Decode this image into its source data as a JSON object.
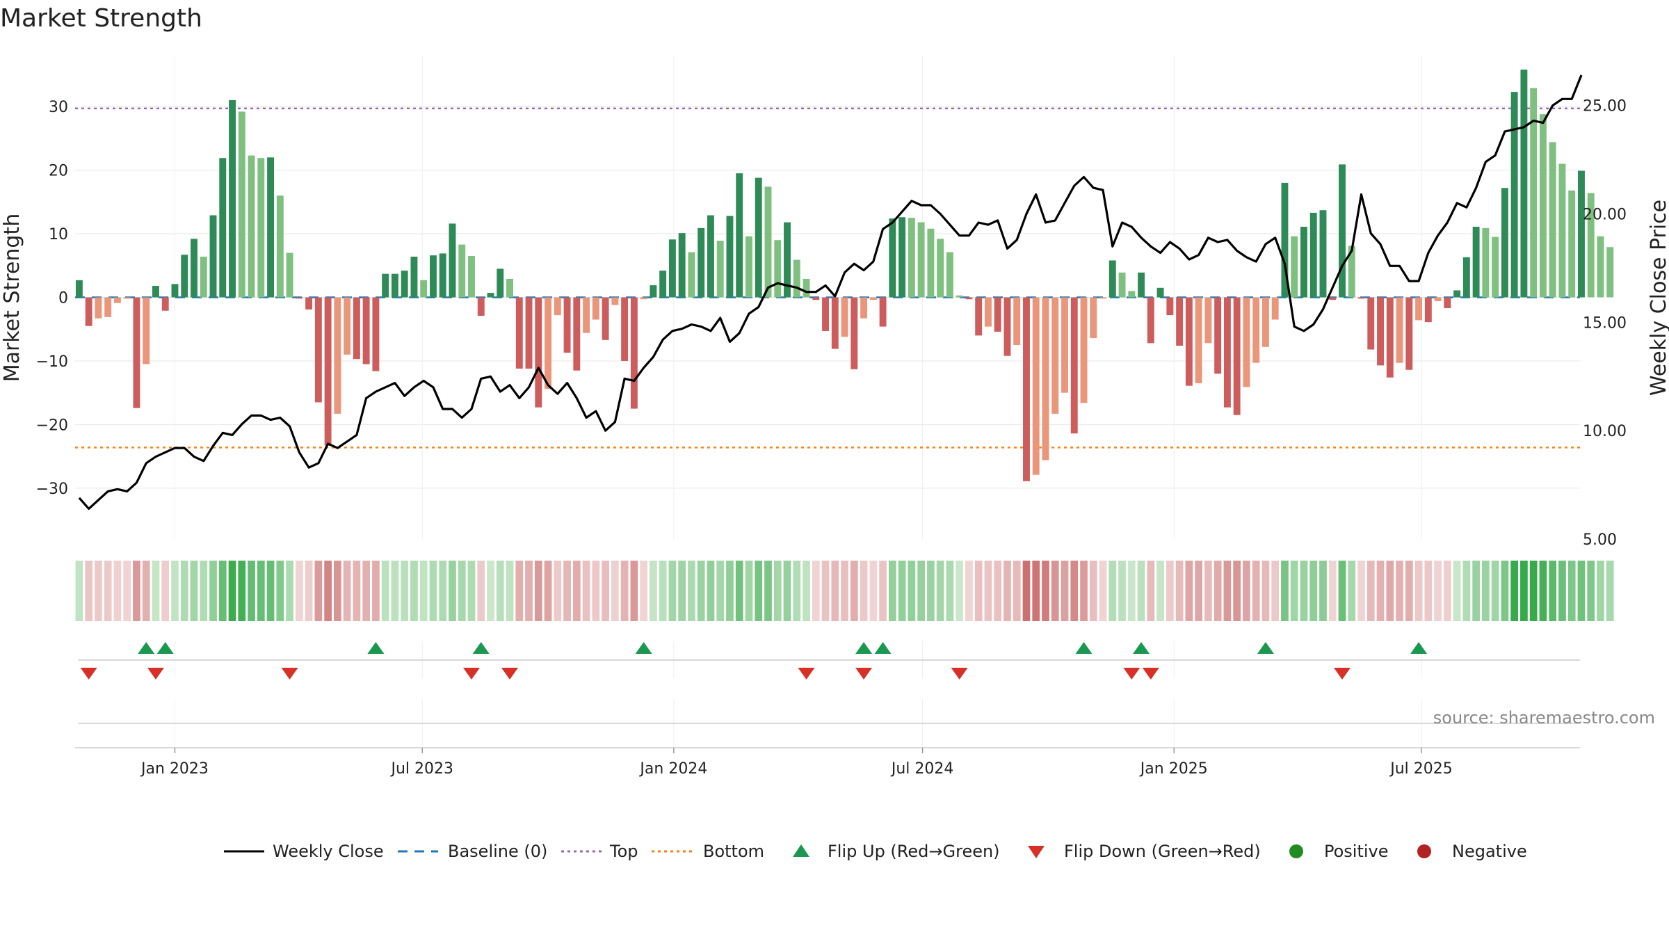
{
  "chart_data": {
    "type": "bar",
    "title": "Market Strength",
    "y_left_label": "Market Strength",
    "y_right_label": "Weekly Close Price",
    "y_left_ticks": [
      "30",
      "20",
      "10",
      "0",
      "−10",
      "−20",
      "−30"
    ],
    "y_left_tick_values": [
      30,
      20,
      10,
      0,
      -10,
      -20,
      -30
    ],
    "y_left_range": [
      -38,
      38
    ],
    "y_right_ticks": [
      "25.00",
      "20.00",
      "15.00",
      "10.00",
      "5.00"
    ],
    "y_right_tick_values": [
      25,
      20,
      15,
      10,
      5
    ],
    "y_right_range": [
      5,
      27.3
    ],
    "x_ticks": [
      "Jan 2023",
      "Jul 2023",
      "Jan 2024",
      "Jul 2024",
      "Jan 2025",
      "Jul 2025"
    ],
    "x_tick_dates": [
      "2023-01-01",
      "2023-07-01",
      "2024-01-01",
      "2024-07-01",
      "2025-01-01",
      "2025-07-01"
    ],
    "x_range": [
      "2022-10-20",
      "2025-10-25"
    ],
    "first_week": "2022-10-23",
    "top_level": 29.7,
    "bottom_level": -23.6,
    "baseline_level": 0,
    "strength": [
      2.7,
      -4.5,
      -3.3,
      -3.1,
      -0.9,
      -0.2,
      -17.4,
      -10.5,
      1.8,
      -2.1,
      2.1,
      6.7,
      9.2,
      6.4,
      12.9,
      21.9,
      31.0,
      29.2,
      22.3,
      21.9,
      22.0,
      16.0,
      7.0,
      -0.2,
      -1.9,
      -16.5,
      -23.3,
      -18.3,
      -9.0,
      -9.7,
      -10.5,
      -11.6,
      3.7,
      3.7,
      4.2,
      6.4,
      2.7,
      6.6,
      6.9,
      11.6,
      8.3,
      6.5,
      -2.9,
      0.7,
      4.5,
      2.9,
      -11.2,
      -11.2,
      -17.3,
      -14.4,
      -2.8,
      -8.7,
      -11.5,
      -5.6,
      -3.5,
      -6.7,
      -1.2,
      -10.0,
      -17.5,
      -0.3,
      1.9,
      4.2,
      9.1,
      10.1,
      7.1,
      10.9,
      12.9,
      8.9,
      12.8,
      19.5,
      9.6,
      18.8,
      17.4,
      9.0,
      11.8,
      5.9,
      2.9,
      -0.4,
      -5.3,
      -8.1,
      -6.2,
      -11.3,
      -3.3,
      -0.4,
      -4.6,
      12.4,
      12.6,
      12.5,
      11.8,
      10.8,
      9.2,
      7.1,
      0.3,
      -0.3,
      -6.0,
      -4.6,
      -5.4,
      -9.2,
      -7.5,
      -28.9,
      -27.9,
      -25.6,
      -18.3,
      -15.0,
      -21.4,
      -16.6,
      -6.4,
      -0.2,
      5.8,
      3.9,
      1.0,
      3.9,
      -7.2,
      1.5,
      -2.8,
      -7.6,
      -13.9,
      -13.5,
      -7.2,
      -12.0,
      -17.3,
      -18.5,
      -14.1,
      -10.3,
      -7.8,
      -3.5,
      18.0,
      9.6,
      11.1,
      13.3,
      13.7,
      -0.4,
      20.9,
      8.1,
      -0.2,
      -8.2,
      -10.7,
      -12.6,
      -10.3,
      -11.4,
      -3.6,
      -3.9,
      -0.6,
      -1.7,
      1.1,
      6.3,
      11.1,
      10.9,
      9.5,
      17.2,
      32.3,
      35.8,
      32.9,
      28.8,
      24.4,
      21.0,
      16.8,
      19.9,
      16.4,
      9.6,
      7.9
    ],
    "price": [
      6.9,
      6.4,
      6.8,
      7.2,
      7.3,
      7.2,
      7.6,
      8.5,
      8.8,
      9.0,
      9.2,
      9.2,
      8.8,
      8.6,
      9.3,
      9.9,
      9.8,
      10.3,
      10.7,
      10.7,
      10.5,
      10.6,
      10.2,
      9.0,
      8.3,
      8.5,
      9.4,
      9.2,
      9.5,
      9.8,
      11.5,
      11.8,
      12.0,
      12.2,
      11.6,
      12.0,
      12.3,
      12.0,
      11.0,
      11.0,
      10.6,
      11.0,
      12.4,
      12.5,
      11.8,
      12.1,
      11.5,
      12.0,
      12.9,
      12.1,
      11.7,
      12.2,
      11.5,
      10.6,
      10.9,
      10.0,
      10.4,
      12.4,
      12.3,
      12.9,
      13.4,
      14.2,
      14.6,
      14.7,
      14.9,
      14.8,
      14.6,
      15.2,
      14.1,
      14.5,
      15.4,
      15.7,
      16.6,
      16.8,
      16.7,
      16.6,
      16.4,
      16.4,
      16.7,
      16.2,
      17.3,
      17.7,
      17.4,
      17.8,
      19.3,
      19.6,
      20.1,
      20.6,
      20.4,
      20.4,
      20.0,
      19.5,
      19.0,
      19.0,
      19.6,
      19.5,
      19.7,
      18.4,
      18.8,
      20.0,
      20.9,
      19.6,
      19.7,
      20.5,
      21.3,
      21.7,
      21.2,
      21.1,
      18.5,
      19.6,
      19.4,
      18.9,
      18.5,
      18.2,
      18.7,
      18.4,
      17.9,
      18.1,
      18.9,
      18.7,
      18.8,
      18.3,
      18.0,
      17.8,
      18.6,
      18.9,
      17.7,
      14.8,
      14.6,
      14.9,
      15.6,
      16.6,
      17.6,
      18.3,
      20.9,
      19.1,
      18.6,
      17.6,
      17.6,
      16.9,
      16.9,
      18.2,
      19.0,
      19.6,
      20.5,
      20.3,
      21.2,
      22.4,
      22.7,
      23.8,
      23.9,
      24.0,
      24.3,
      24.2,
      25.0,
      25.3,
      25.3,
      26.4
    ],
    "flip_up_weeks": [
      7,
      9,
      31,
      42,
      59,
      82,
      84,
      105,
      111,
      124,
      140
    ],
    "flip_down_weeks": [
      1,
      8,
      22,
      41,
      45,
      76,
      82,
      92,
      110,
      112,
      132
    ],
    "legend": [
      "Weekly Close",
      "Baseline (0)",
      "Top",
      "Bottom",
      "Flip Up (Red→Green)",
      "Flip Down (Green→Red)",
      "Positive",
      "Negative"
    ],
    "grid": true,
    "legend_position": "bottom-center"
  },
  "source_text": "source: sharemaestro.com",
  "colors": {
    "green_dark": "#2e8b57",
    "green_light": "#7fbf7f",
    "red_dark": "#cd5c5c",
    "red_light": "#e9967a",
    "price_line": "#000000",
    "baseline": "#1f77b4",
    "top_line": "#9467bd",
    "bottom_line": "#ff7f0e",
    "flip_up": "#1a9850",
    "flip_down": "#d73027",
    "positive_dot": "#228b22",
    "negative_dot": "#b22222"
  }
}
